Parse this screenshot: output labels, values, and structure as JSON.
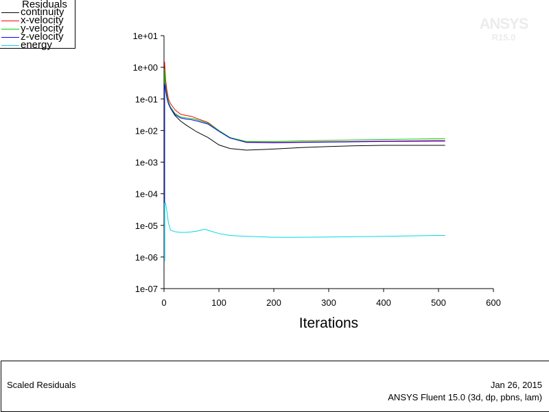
{
  "legend": {
    "title": "Residuals",
    "items": [
      {
        "label": "continuity",
        "color": "#000000"
      },
      {
        "label": "x-velocity",
        "color": "#ff0000"
      },
      {
        "label": "y-velocity",
        "color": "#00cc00"
      },
      {
        "label": "z-velocity",
        "color": "#0000ff"
      },
      {
        "label": "energy",
        "color": "#00d8e6"
      }
    ]
  },
  "watermark": {
    "line1": "ANSYS",
    "line2": "R15.0"
  },
  "footer": {
    "title": "Scaled Residuals",
    "date": "Jan 26, 2015",
    "version": "ANSYS Fluent 15.0 (3d, dp, pbns, lam)"
  },
  "chart_data": {
    "type": "line",
    "xlabel": "Iterations",
    "ylabel": "",
    "title": "",
    "xlim": [
      0,
      600
    ],
    "ylim": [
      1e-07,
      10
    ],
    "yscale": "log",
    "xticks": [
      "0",
      "100",
      "200",
      "300",
      "400",
      "500",
      "600"
    ],
    "yticks": [
      "1e-07",
      "1e-06",
      "1e-05",
      "1e-04",
      "1e-03",
      "1e-02",
      "1e-01",
      "1e+00",
      "1e+01"
    ],
    "grid": false,
    "legend_position": "top-left",
    "series": [
      {
        "name": "continuity",
        "color": "#000000",
        "x": [
          1,
          2,
          3,
          5,
          8,
          12,
          20,
          30,
          40,
          60,
          80,
          100,
          120,
          150,
          180,
          200,
          250,
          300,
          350,
          400,
          450,
          500,
          512
        ],
        "y": [
          1,
          0.5,
          0.3,
          0.15,
          0.08,
          0.05,
          0.03,
          0.02,
          0.015,
          0.009,
          0.006,
          0.0035,
          0.0027,
          0.0024,
          0.0025,
          0.0026,
          0.0029,
          0.0031,
          0.0033,
          0.0034,
          0.0034,
          0.0034,
          0.0034
        ]
      },
      {
        "name": "x-velocity",
        "color": "#ff0000",
        "x": [
          1,
          2,
          3,
          5,
          8,
          12,
          20,
          30,
          40,
          50,
          60,
          80,
          100,
          120,
          150,
          200,
          250,
          300,
          400,
          500,
          512
        ],
        "y": [
          1.5,
          0.8,
          0.4,
          0.2,
          0.1,
          0.07,
          0.045,
          0.033,
          0.03,
          0.028,
          0.024,
          0.018,
          0.01,
          0.006,
          0.0043,
          0.0042,
          0.0043,
          0.0044,
          0.0046,
          0.0048,
          0.0048
        ]
      },
      {
        "name": "y-velocity",
        "color": "#00cc00",
        "x": [
          1,
          2,
          3,
          5,
          8,
          12,
          20,
          30,
          40,
          50,
          60,
          80,
          100,
          120,
          150,
          200,
          250,
          300,
          400,
          500,
          512
        ],
        "y": [
          0.9,
          0.5,
          0.25,
          0.14,
          0.08,
          0.055,
          0.035,
          0.027,
          0.025,
          0.024,
          0.022,
          0.017,
          0.01,
          0.006,
          0.0045,
          0.0045,
          0.0047,
          0.0049,
          0.0052,
          0.0055,
          0.0055
        ]
      },
      {
        "name": "z-velocity",
        "color": "#0000ff",
        "x": [
          1,
          2,
          3,
          5,
          8,
          12,
          20,
          30,
          40,
          50,
          60,
          80,
          100,
          120,
          150,
          200,
          250,
          300,
          400,
          500,
          512
        ],
        "y": [
          0.3,
          0.25,
          0.18,
          0.11,
          0.07,
          0.05,
          0.032,
          0.025,
          0.023,
          0.022,
          0.02,
          0.016,
          0.0095,
          0.0058,
          0.0042,
          0.0041,
          0.0042,
          0.0043,
          0.0045,
          0.0046,
          0.0046
        ]
      },
      {
        "name": "energy",
        "color": "#00d8e6",
        "x": [
          1,
          3,
          5,
          8,
          12,
          20,
          30,
          40,
          50,
          60,
          70,
          75,
          80,
          100,
          120,
          150,
          200,
          250,
          300,
          400,
          500,
          512
        ],
        "y": [
          5e-05,
          5e-05,
          3e-05,
          1.2e-05,
          7e-06,
          6.3e-06,
          6e-06,
          6e-06,
          6.2e-06,
          6.6e-06,
          7.3e-06,
          7.5e-06,
          7e-06,
          5.5e-06,
          4.8e-06,
          4.5e-06,
          4.2e-06,
          4.2e-06,
          4.3e-06,
          4.5e-06,
          4.8e-06,
          4.8e-06
        ]
      }
    ]
  }
}
